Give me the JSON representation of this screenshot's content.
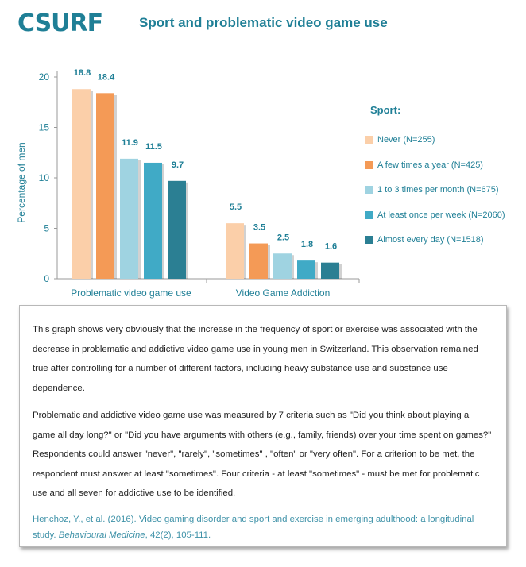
{
  "logo_text": "CSURF",
  "title": "Sport and problematic video game use",
  "chart_data": {
    "type": "bar",
    "ylabel": "Percentage of men",
    "ylim": [
      0,
      20
    ],
    "yticks": [
      0,
      5,
      10,
      15,
      20
    ],
    "categories": [
      "Problematic video game use",
      "Video Game Addiction"
    ],
    "legend_title": "Sport:",
    "legend_position": "right",
    "series": [
      {
        "name": "Never (N=255)",
        "color": "#fbcfa9",
        "values": [
          18.8,
          5.5
        ]
      },
      {
        "name": "A few times a year (N=425)",
        "color": "#f49a56",
        "values": [
          18.4,
          3.5
        ]
      },
      {
        "name": "1 to 3 times per month (N=675)",
        "color": "#9fd3e1",
        "values": [
          11.9,
          2.5
        ]
      },
      {
        "name": "At least once per week (N=2060)",
        "color": "#40aac6",
        "values": [
          11.5,
          1.8
        ]
      },
      {
        "name": "Almost every day (N=1518)",
        "color": "#2b7f93",
        "values": [
          9.7,
          1.6
        ]
      }
    ],
    "value_labels": [
      "18.8",
      "18.4",
      "11.9",
      "11.5",
      "9.7",
      "5.5",
      "3.5",
      "2.5",
      "1.8",
      "1.6"
    ],
    "grid": false
  },
  "description": {
    "paragraph1": "This graph shows very obviously that the increase in the frequency of sport or exercise was associated with the decrease in problematic and addictive video game use in young men in Switzerland. This observation remained true after controlling for a number of different factors, including heavy substance use and substance use dependence.",
    "paragraph2": "Problematic and addictive video game use was measured by 7 criteria such as \"Did you think about playing a game all day long?\" or \"Did you have arguments with others (e.g., family, friends) over your time spent on games?\"  Respondents could answer  \"never\", \"rarely\",  \"sometimes\" ,  \"often\" or \"very often\".  For a criterion to be met, the respondent must answer at least \"sometimes\".  Four criteria - at least \"sometimes\" - must be met for problematic use and all seven for addictive use to be identified.",
    "citation_authors": "Henchoz, Y., et al. (2016). Video gaming disorder and sport and exercise in emerging adulthood: a longitudinal study.",
    "citation_journal": "Behavioural Medicine",
    "citation_rest": ", 42(2), 105-111."
  }
}
